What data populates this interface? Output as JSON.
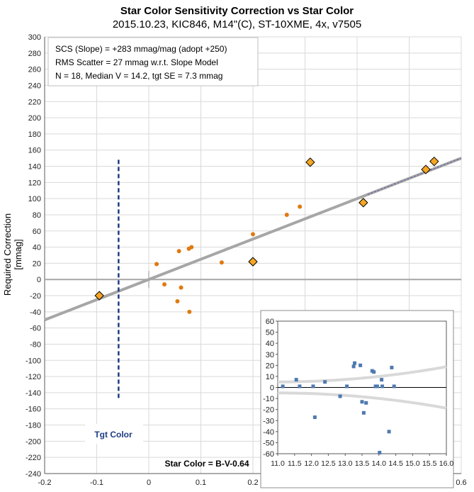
{
  "title": "Star Color Sensitivity Correction vs Star Color",
  "subtitle": "2015.10.23, KIC846, M14\"(C), ST-10XME, 4x, v7505",
  "colors": {
    "orange": "#E07A10",
    "diamond": "#F5A623",
    "trend": "#A6A6A6",
    "tgt": "#1F3B82",
    "inset_point": "#4F79B0"
  },
  "chart_data": [
    {
      "type": "scatter",
      "title": "Star Color Sensitivity Correction vs Star Color",
      "xlabel": "",
      "ylabel": "Required Correction [mmag]",
      "xlim": [
        -0.2,
        0.6
      ],
      "ylim": [
        -240,
        300
      ],
      "x_ticks": [
        "-0.2",
        "-0.1",
        "0",
        "0.1",
        "0.2",
        "0.3",
        "0.4",
        "0.5",
        "0.6"
      ],
      "y_ticks": [
        "-240",
        "-220",
        "-200",
        "-180",
        "-160",
        "-140",
        "-120",
        "-100",
        "-80",
        "-60",
        "-40",
        "-20",
        "0",
        "20",
        "40",
        "60",
        "80",
        "100",
        "120",
        "140",
        "160",
        "180",
        "200",
        "220",
        "240",
        "260",
        "280",
        "300"
      ],
      "grid": true,
      "annotation_lines": [
        "SCS (Slope)  =  +283 mmag/mag (adopt +250)",
        "RMS Scatter = 27 mmag w.r.t. Slope Model",
        "N = 18,  Median V = 14.2, tgt SE = 7.3 mmag"
      ],
      "tgt_label": "Tgt Color",
      "star_color_label": "Star Color = B-V-0.64",
      "trend_line": {
        "slope": 250,
        "intercept": 0
      },
      "tgt_color_x": -0.058,
      "series": [
        {
          "marker": "circle",
          "points": [
            {
              "x": 0.015,
              "y": 19
            },
            {
              "x": 0.03,
              "y": -6
            },
            {
              "x": 0.055,
              "y": -27
            },
            {
              "x": 0.058,
              "y": 35
            },
            {
              "x": 0.062,
              "y": -10
            },
            {
              "x": 0.077,
              "y": 38
            },
            {
              "x": 0.082,
              "y": 40
            },
            {
              "x": 0.078,
              "y": -40
            },
            {
              "x": 0.14,
              "y": 21
            },
            {
              "x": 0.2,
              "y": 56
            },
            {
              "x": 0.265,
              "y": 80
            },
            {
              "x": 0.29,
              "y": 90
            }
          ]
        },
        {
          "marker": "diamond",
          "points": [
            {
              "x": -0.095,
              "y": -20
            },
            {
              "x": 0.2,
              "y": 22
            },
            {
              "x": 0.31,
              "y": 145
            },
            {
              "x": 0.412,
              "y": 95
            },
            {
              "x": 0.532,
              "y": 136
            },
            {
              "x": 0.548,
              "y": 146
            }
          ]
        }
      ]
    },
    {
      "type": "scatter",
      "xlim": [
        11.0,
        16.0
      ],
      "ylim": [
        -60,
        60
      ],
      "x_ticks": [
        "11.0",
        "11.5",
        "12.0",
        "12.5",
        "13.0",
        "13.5",
        "14.0",
        "14.5",
        "15.0",
        "15.5",
        "16.0"
      ],
      "y_ticks": [
        "-60",
        "-50",
        "-40",
        "-30",
        "-20",
        "-10",
        "0",
        "10",
        "20",
        "30",
        "40",
        "50",
        "60"
      ],
      "grid": false,
      "points": [
        {
          "x": 11.15,
          "y": 1
        },
        {
          "x": 11.55,
          "y": 7
        },
        {
          "x": 11.65,
          "y": 1
        },
        {
          "x": 12.05,
          "y": 1
        },
        {
          "x": 12.1,
          "y": -27
        },
        {
          "x": 12.4,
          "y": 5
        },
        {
          "x": 12.85,
          "y": -8
        },
        {
          "x": 13.05,
          "y": 1
        },
        {
          "x": 13.25,
          "y": 19
        },
        {
          "x": 13.28,
          "y": 22
        },
        {
          "x": 13.45,
          "y": 20
        },
        {
          "x": 13.5,
          "y": -13
        },
        {
          "x": 13.55,
          "y": -23
        },
        {
          "x": 13.62,
          "y": -14
        },
        {
          "x": 13.8,
          "y": 15
        },
        {
          "x": 13.85,
          "y": 14
        },
        {
          "x": 13.9,
          "y": 1
        },
        {
          "x": 13.95,
          "y": 1
        },
        {
          "x": 14.02,
          "y": -59
        },
        {
          "x": 14.08,
          "y": 7
        },
        {
          "x": 14.1,
          "y": 1
        },
        {
          "x": 14.3,
          "y": -40
        },
        {
          "x": 14.38,
          "y": 18
        },
        {
          "x": 14.45,
          "y": 1
        }
      ]
    }
  ]
}
